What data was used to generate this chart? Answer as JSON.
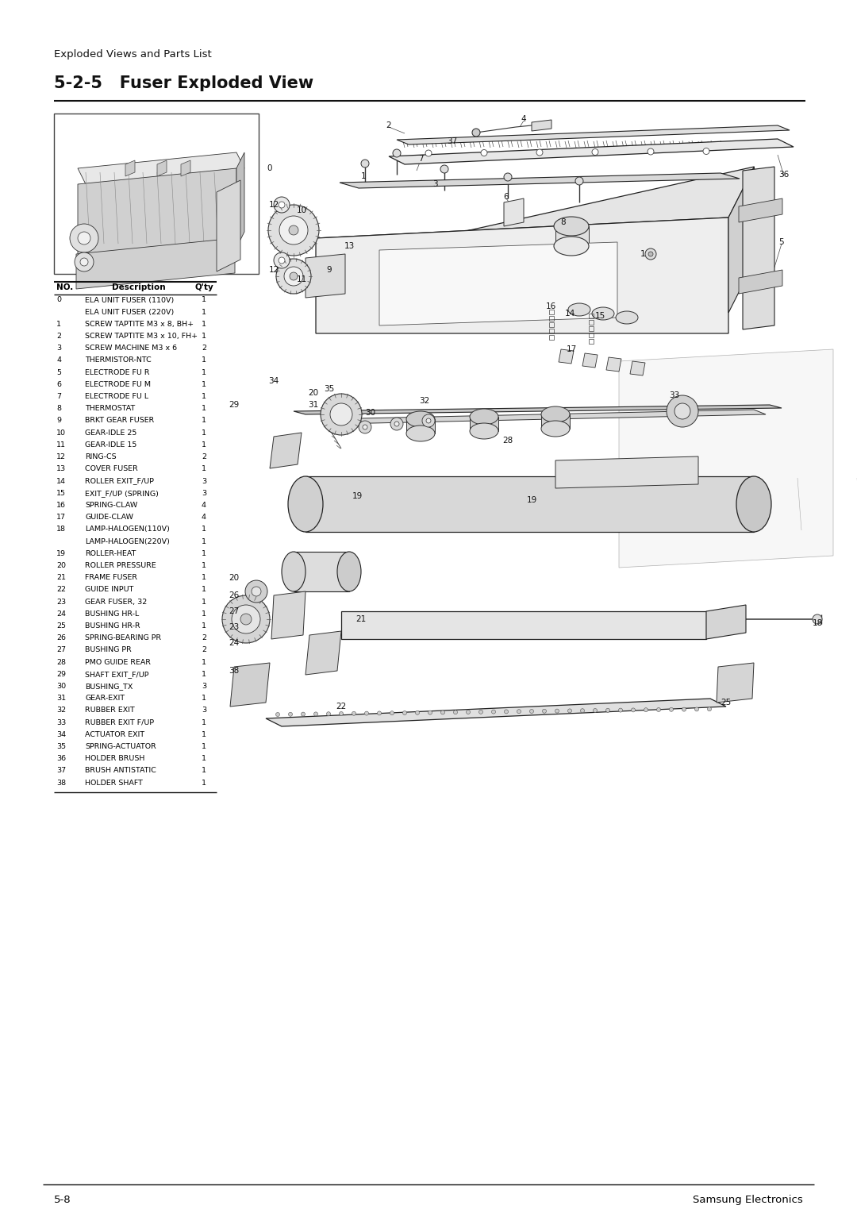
{
  "page_title": "Exploded Views and Parts List",
  "section_title": "5-2-5   Fuser Exploded View",
  "footer_left": "5-8",
  "footer_right": "Samsung Electronics",
  "table_headers": [
    "NO.",
    "Description",
    "Q'ty"
  ],
  "parts": [
    {
      "no": "0",
      "desc": "ELA UNIT FUSER (110V)",
      "qty": "1"
    },
    {
      "no": "",
      "desc": "ELA UNIT FUSER (220V)",
      "qty": "1"
    },
    {
      "no": "1",
      "desc": "SCREW TAPTITE M3 x 8, BH+",
      "qty": "1"
    },
    {
      "no": "2",
      "desc": "SCREW TAPTITE M3 x 10, FH+",
      "qty": "1"
    },
    {
      "no": "3",
      "desc": "SCREW MACHINE M3 x 6",
      "qty": "2"
    },
    {
      "no": "4",
      "desc": "THERMISTOR-NTC",
      "qty": "1"
    },
    {
      "no": "5",
      "desc": "ELECTRODE FU R",
      "qty": "1"
    },
    {
      "no": "6",
      "desc": "ELECTRODE FU M",
      "qty": "1"
    },
    {
      "no": "7",
      "desc": "ELECTRODE FU L",
      "qty": "1"
    },
    {
      "no": "8",
      "desc": "THERMOSTAT",
      "qty": "1"
    },
    {
      "no": "9",
      "desc": "BRKT GEAR FUSER",
      "qty": "1"
    },
    {
      "no": "10",
      "desc": "GEAR-IDLE 25",
      "qty": "1"
    },
    {
      "no": "11",
      "desc": "GEAR-IDLE 15",
      "qty": "1"
    },
    {
      "no": "12",
      "desc": "RING-CS",
      "qty": "2"
    },
    {
      "no": "13",
      "desc": "COVER FUSER",
      "qty": "1"
    },
    {
      "no": "14",
      "desc": "ROLLER EXIT_F/UP",
      "qty": "3"
    },
    {
      "no": "15",
      "desc": "EXIT_F/UP (SPRING)",
      "qty": "3"
    },
    {
      "no": "16",
      "desc": "SPRING-CLAW",
      "qty": "4"
    },
    {
      "no": "17",
      "desc": "GUIDE-CLAW",
      "qty": "4"
    },
    {
      "no": "18",
      "desc": "LAMP-HALOGEN(110V)",
      "qty": "1"
    },
    {
      "no": "",
      "desc": "LAMP-HALOGEN(220V)",
      "qty": "1"
    },
    {
      "no": "19",
      "desc": "ROLLER-HEAT",
      "qty": "1"
    },
    {
      "no": "20",
      "desc": "ROLLER PRESSURE",
      "qty": "1"
    },
    {
      "no": "21",
      "desc": "FRAME FUSER",
      "qty": "1"
    },
    {
      "no": "22",
      "desc": "GUIDE INPUT",
      "qty": "1"
    },
    {
      "no": "23",
      "desc": "GEAR FUSER, 32",
      "qty": "1"
    },
    {
      "no": "24",
      "desc": "BUSHING HR-L",
      "qty": "1"
    },
    {
      "no": "25",
      "desc": "BUSHING HR-R",
      "qty": "1"
    },
    {
      "no": "26",
      "desc": "SPRING-BEARING PR",
      "qty": "2"
    },
    {
      "no": "27",
      "desc": "BUSHING PR",
      "qty": "2"
    },
    {
      "no": "28",
      "desc": "PMO GUIDE REAR",
      "qty": "1"
    },
    {
      "no": "29",
      "desc": "SHAFT EXIT_F/UP",
      "qty": "1"
    },
    {
      "no": "30",
      "desc": "BUSHING_TX",
      "qty": "3"
    },
    {
      "no": "31",
      "desc": "GEAR-EXIT",
      "qty": "1"
    },
    {
      "no": "32",
      "desc": "RUBBER EXIT",
      "qty": "3"
    },
    {
      "no": "33",
      "desc": "RUBBER EXIT F/UP",
      "qty": "1"
    },
    {
      "no": "34",
      "desc": "ACTUATOR EXIT",
      "qty": "1"
    },
    {
      "no": "35",
      "desc": "SPRING-ACTUATOR",
      "qty": "1"
    },
    {
      "no": "36",
      "desc": "HOLDER BRUSH",
      "qty": "1"
    },
    {
      "no": "37",
      "desc": "BRUSH ANTISTATIC",
      "qty": "1"
    },
    {
      "no": "38",
      "desc": "HOLDER SHAFT",
      "qty": "1"
    }
  ],
  "bg_color": "#ffffff",
  "text_color": "#000000",
  "line_color": "#000000",
  "lw": 0.7
}
